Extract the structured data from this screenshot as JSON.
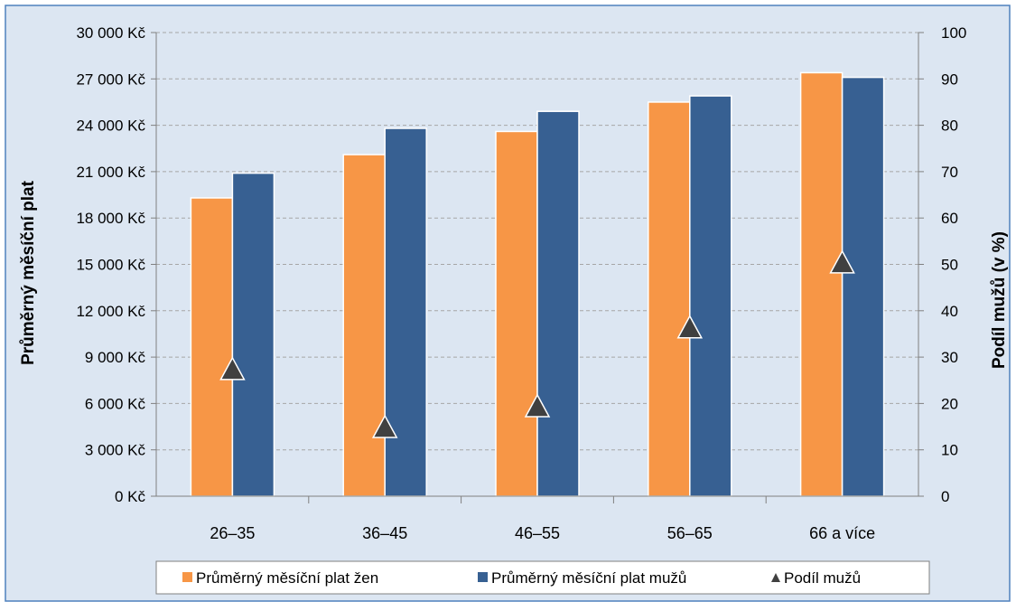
{
  "chart_data": {
    "type": "bar",
    "categories": [
      "26–35",
      "36–45",
      "46–55",
      "56–65",
      "66 a více"
    ],
    "series": [
      {
        "name": "Průměrný měsíční plat žen",
        "type": "bar",
        "axis": "left",
        "color": "#f79646",
        "values": [
          19300,
          22100,
          23600,
          25500,
          27400
        ]
      },
      {
        "name": "Průměrný měsíční plat mužů",
        "type": "bar",
        "axis": "left",
        "color": "#376092",
        "values": [
          20900,
          23800,
          24900,
          25900,
          27100
        ]
      },
      {
        "name": "Podíl mužů",
        "type": "scatter",
        "marker": "triangle",
        "axis": "right",
        "color": "#404040",
        "values": [
          27.5,
          15,
          19.5,
          36.5,
          50.5
        ]
      }
    ],
    "title": "",
    "ylabel": "Průměrný měsíční plat",
    "y2label": "Podíl mužů (v %)",
    "ylim": [
      0,
      30000
    ],
    "y2lim": [
      0,
      100
    ],
    "yticks": [
      "0 Kč",
      "3 000 Kč",
      "6 000 Kč",
      "9 000 Kč",
      "12 000 Kč",
      "15 000 Kč",
      "18 000 Kč",
      "21 000 Kč",
      "24 000 Kč",
      "27 000 Kč",
      "30 000 Kč"
    ],
    "y2ticks": [
      "0",
      "10",
      "20",
      "30",
      "40",
      "50",
      "60",
      "70",
      "80",
      "90",
      "100"
    ],
    "grid": true,
    "legend_position": "bottom",
    "background": "#dce6f2"
  }
}
